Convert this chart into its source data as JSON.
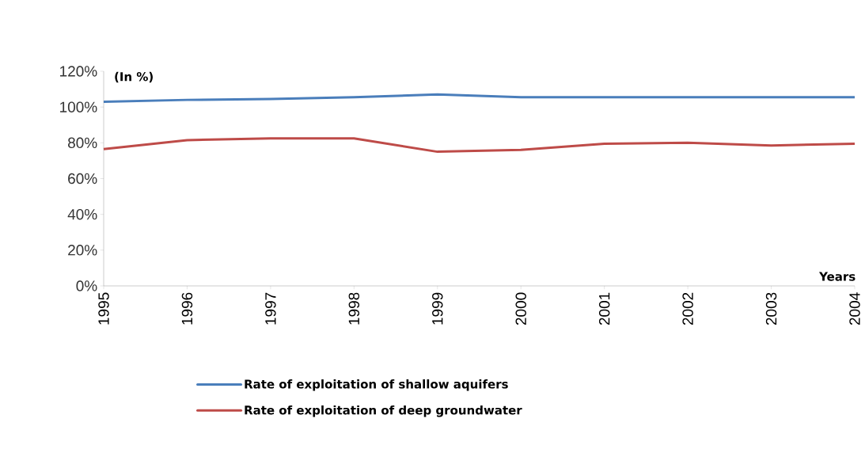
{
  "chart_data": {
    "type": "line",
    "xlabel": "Years",
    "ylabel": "(In %)",
    "categories": [
      "1995",
      "1996",
      "1997",
      "1998",
      "1999",
      "2000",
      "2001",
      "2002",
      "2003",
      "2004"
    ],
    "series": [
      {
        "name": "Rate of exploitation of shallow aquifers",
        "color": "#4a7ebb",
        "values": [
          103,
          104,
          104.5,
          105.5,
          107,
          105.5,
          105.5,
          105.5,
          105.5,
          105.5
        ]
      },
      {
        "name": "Rate of exploitation of deep groundwater",
        "color": "#be4b48",
        "values": [
          76.5,
          81.5,
          82.5,
          82.5,
          75,
          76,
          79.5,
          80,
          78.5,
          79.5
        ]
      }
    ],
    "ylim": [
      0,
      120
    ],
    "yticks": [
      {
        "value": 0,
        "label": "0%"
      },
      {
        "value": 20,
        "label": "20%"
      },
      {
        "value": 40,
        "label": "40%"
      },
      {
        "value": 60,
        "label": "60%"
      },
      {
        "value": 80,
        "label": "80%"
      },
      {
        "value": 100,
        "label": "100%"
      },
      {
        "value": 120,
        "label": "120%"
      }
    ],
    "grid": false,
    "legend": "bottom",
    "marker": "none",
    "line_style": "solid"
  }
}
